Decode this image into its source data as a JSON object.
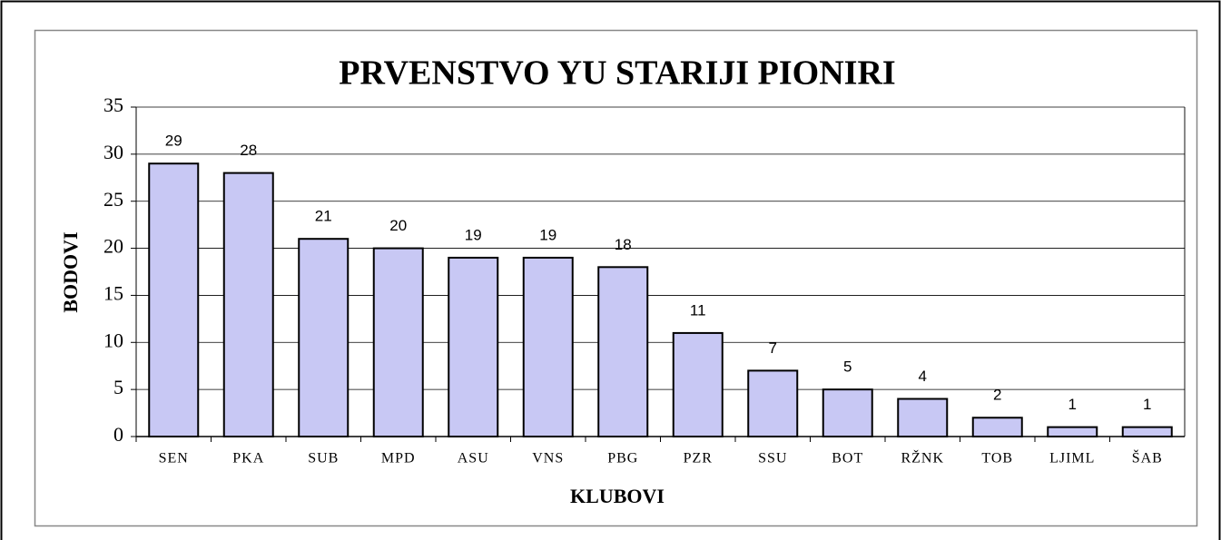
{
  "chart_data": {
    "type": "bar",
    "title": "PRVENSTVO YU STARIJI PIONIRI",
    "x_label": "KLUBOVI",
    "y_label": "BODOVI",
    "categories": [
      "SEN",
      "PKA",
      "SUB",
      "MPD",
      "ASU",
      "VNS",
      "PBG",
      "PZR",
      "SSU",
      "BOT",
      "RŽNK",
      "TOB",
      "LJIML",
      "ŠAB"
    ],
    "values": [
      29,
      28,
      21,
      20,
      19,
      19,
      18,
      11,
      7,
      5,
      4,
      2,
      1,
      1
    ],
    "color": "#c8c8f4",
    "ylim": [
      0,
      35
    ],
    "yticks": [
      0,
      5,
      10,
      15,
      20,
      25,
      30,
      35
    ],
    "grid": true
  }
}
